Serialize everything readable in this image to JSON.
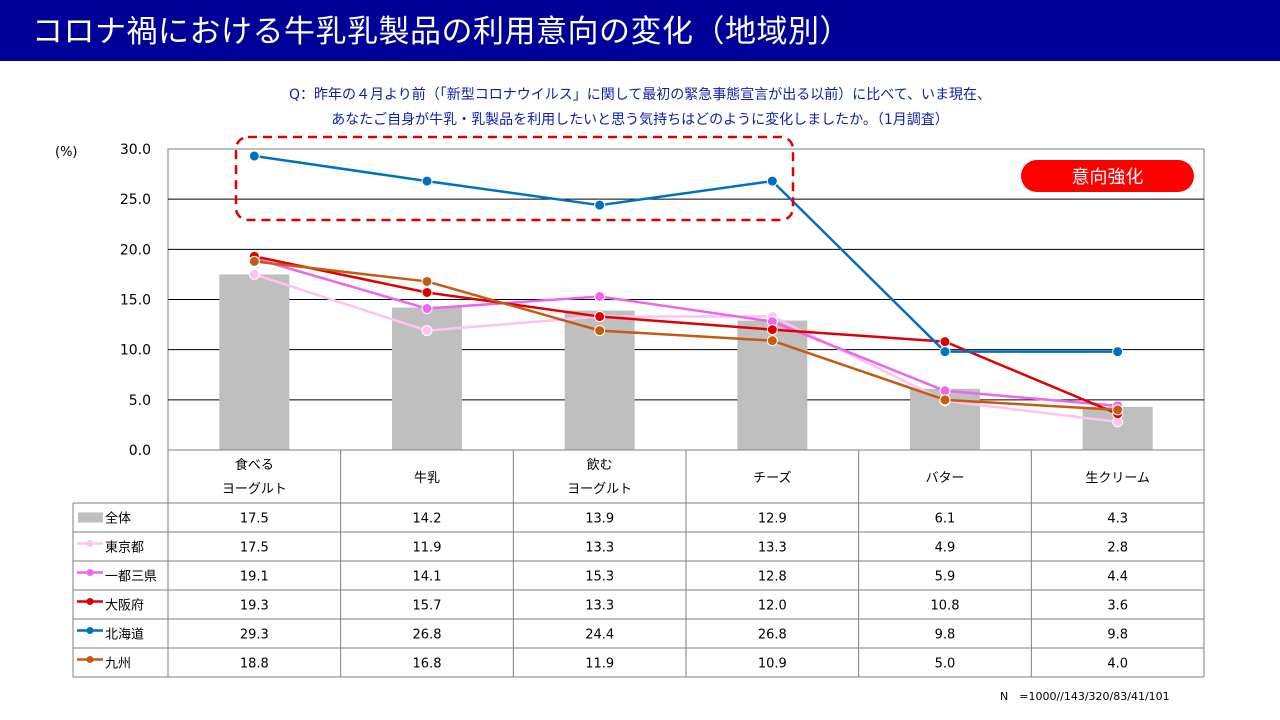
{
  "title": "コロナ禍における牛乳乳製品の利用意向の変化（地域別）",
  "question": {
    "line1": "Q：昨年の４月より前（「新型コロナウイルス」に関して最初の緊急事態宣言が出る以前）に比べて、いま現在、",
    "line2": "あなたご自身が牛乳・乳製品を利用したいと思う気持ちはどのように変化しましたか。（1月調査）"
  },
  "badge": "意向強化",
  "footnote": "N　=1000//143/320/83/41/101",
  "chart_data": {
    "type": "bar",
    "ylabel": "(%)",
    "ylim": [
      0,
      30
    ],
    "yticks": [
      "0.0",
      "5.0",
      "10.0",
      "15.0",
      "20.0",
      "25.0",
      "30.0"
    ],
    "grid": true,
    "categories": [
      [
        "食べる",
        "ヨーグルト"
      ],
      [
        "牛乳"
      ],
      [
        "飲む",
        "ヨーグルト"
      ],
      [
        "チーズ"
      ],
      [
        "バター"
      ],
      [
        "生クリーム"
      ]
    ],
    "series": [
      {
        "name": "全体",
        "kind": "bar",
        "color": "#bfbfbf",
        "values": [
          17.5,
          14.2,
          13.9,
          12.9,
          6.1,
          4.3
        ]
      },
      {
        "name": "東京都",
        "kind": "line",
        "color": "#ffc3f2",
        "values": [
          17.5,
          11.9,
          13.3,
          13.3,
          4.9,
          2.8
        ]
      },
      {
        "name": "一都三県",
        "kind": "line",
        "color": "#ee66ee",
        "values": [
          19.1,
          14.1,
          15.3,
          12.8,
          5.9,
          4.4
        ]
      },
      {
        "name": "大阪府",
        "kind": "line",
        "color": "#e00000",
        "values": [
          19.3,
          15.7,
          13.3,
          12.0,
          10.8,
          3.6
        ]
      },
      {
        "name": "北海道",
        "kind": "line",
        "color": "#0070c0",
        "values": [
          29.3,
          26.8,
          24.4,
          26.8,
          9.8,
          9.8
        ]
      },
      {
        "name": "九州",
        "kind": "line",
        "color": "#c55a11",
        "values": [
          18.8,
          16.8,
          11.9,
          10.9,
          5.0,
          4.0
        ]
      }
    ],
    "table_values": [
      [
        "17.5",
        "14.2",
        "13.9",
        "12.9",
        "6.1",
        "4.3"
      ],
      [
        "17.5",
        "11.9",
        "13.3",
        "13.3",
        "4.9",
        "2.8"
      ],
      [
        "19.1",
        "14.1",
        "15.3",
        "12.8",
        "5.9",
        "4.4"
      ],
      [
        "19.3",
        "15.7",
        "13.3",
        "12.0",
        "10.8",
        "3.6"
      ],
      [
        "29.3",
        "26.8",
        "24.4",
        "26.8",
        "9.8",
        "9.8"
      ],
      [
        "18.8",
        "16.8",
        "11.9",
        "10.9",
        "5.0",
        "4.0"
      ]
    ]
  }
}
